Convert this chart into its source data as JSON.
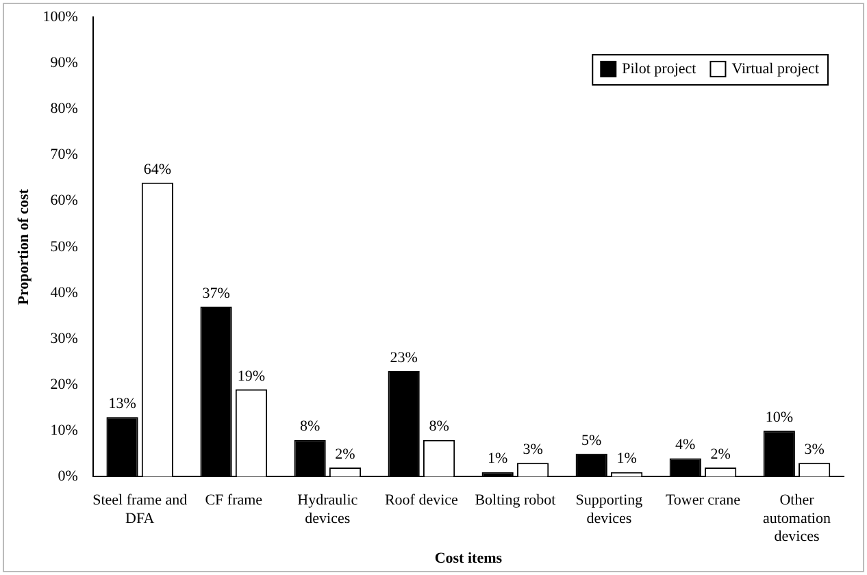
{
  "chart_data": {
    "type": "bar",
    "xlabel": "Cost items",
    "ylabel": "Proportion of cost",
    "categories": [
      "Steel frame and DFA",
      "CF frame",
      "Hydraulic devices",
      "Roof device",
      "Bolting robot",
      "Supporting devices",
      "Tower crane",
      "Other automation devices"
    ],
    "series": [
      {
        "name": "Pilot project",
        "color": "#000000",
        "values": [
          13,
          37,
          8,
          23,
          1,
          5,
          4,
          10
        ],
        "value_labels": [
          "13%",
          "37%",
          "8%",
          "23%",
          "1%",
          "5%",
          "4%",
          "10%"
        ]
      },
      {
        "name": "Virtual project",
        "color": "#ffffff",
        "values": [
          64,
          19,
          2,
          8,
          3,
          1,
          2,
          3
        ],
        "value_labels": [
          "64%",
          "19%",
          "2%",
          "8%",
          "3%",
          "1%",
          "2%",
          "3%"
        ]
      }
    ],
    "ylim": [
      0,
      100
    ],
    "yticks": [
      {
        "value": 0,
        "label": "0%"
      },
      {
        "value": 10,
        "label": "10%"
      },
      {
        "value": 20,
        "label": "20%"
      },
      {
        "value": 30,
        "label": "30%"
      },
      {
        "value": 40,
        "label": "40%"
      },
      {
        "value": 50,
        "label": "50%"
      },
      {
        "value": 60,
        "label": "60%"
      },
      {
        "value": 70,
        "label": "70%"
      },
      {
        "value": 80,
        "label": "80%"
      },
      {
        "value": 90,
        "label": "90%"
      },
      {
        "value": 100,
        "label": "100%"
      }
    ],
    "grid": false,
    "legend": "top right"
  }
}
